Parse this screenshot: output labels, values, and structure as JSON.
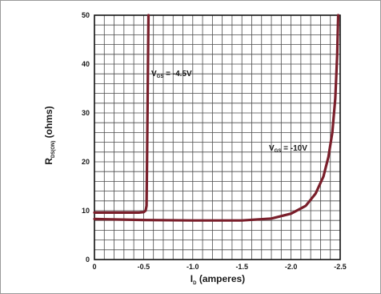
{
  "chart_data": {
    "type": "line",
    "xlabel": {
      "main": "I",
      "sub": "D",
      "rest": " (amperes)"
    },
    "ylabel": {
      "main": "R",
      "sub": "DS(ON)",
      "rest": " (ohms)"
    },
    "xlim": [
      0,
      -2.5
    ],
    "ylim": [
      0,
      50
    ],
    "x_ticks": [
      0,
      -0.5,
      -1.0,
      -1.5,
      -2.0,
      -2.5
    ],
    "x_tick_labels": [
      "0",
      "-0.5",
      "-1.0",
      "-1.5",
      "-2.0",
      "-2.5"
    ],
    "y_ticks": [
      0,
      10,
      20,
      30,
      40,
      50
    ],
    "y_tick_labels": [
      "0",
      "10",
      "20",
      "30",
      "40",
      "50"
    ],
    "grid": true,
    "line_color": "#7a1f2b",
    "series": [
      {
        "annotation": {
          "main": "V",
          "sub": "GS",
          "rest": " = -4.5V"
        },
        "x": [
          0,
          -0.3,
          -0.45,
          -0.5,
          -0.52,
          -0.53,
          -0.535,
          -0.54,
          -0.545,
          -0.55
        ],
        "y": [
          9.6,
          9.6,
          9.6,
          9.7,
          10.0,
          11.0,
          20,
          30,
          40,
          50
        ]
      },
      {
        "annotation": {
          "main": "V",
          "sub": "GS",
          "rest": " = -10V"
        },
        "x": [
          0,
          -0.5,
          -1.0,
          -1.5,
          -1.8,
          -2.0,
          -2.15,
          -2.25,
          -2.33,
          -2.38,
          -2.42,
          -2.45,
          -2.47,
          -2.48
        ],
        "y": [
          8.3,
          8.1,
          8.0,
          8.0,
          8.4,
          9.4,
          11.0,
          13.5,
          17.0,
          21.0,
          26.0,
          33.0,
          42.0,
          50.0
        ]
      }
    ]
  }
}
